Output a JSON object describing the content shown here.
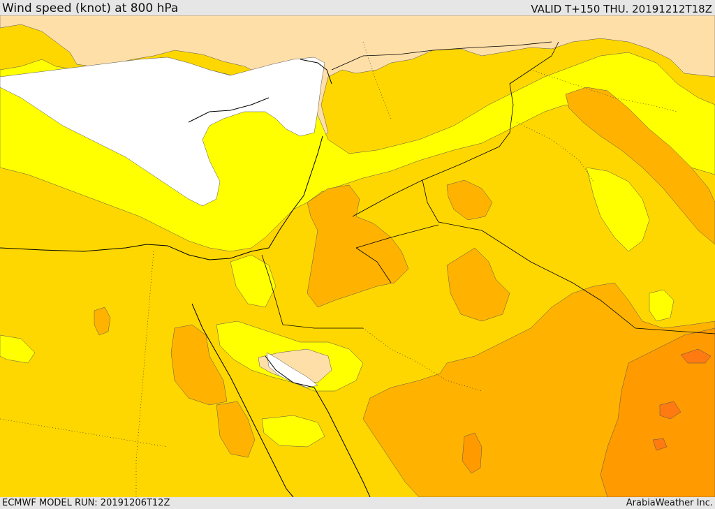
{
  "header": {
    "title": "Wind speed (knot) at 800 hPa",
    "valid": "VALID T+150 THU. 20191212T18Z"
  },
  "footer": {
    "model_run": "ECMWF MODEL RUN: 20191206T12Z",
    "credit": "ArabiaWeather Inc."
  },
  "palette": {
    "calm": "#ffdfa8",
    "light": "#ffff00",
    "moderate": "#ffd700",
    "fresh": "#ffb300",
    "strong": "#ff9a00",
    "very_strong": "#ff7a10",
    "no_data": "#ffffff",
    "coastline": "#000000"
  }
}
